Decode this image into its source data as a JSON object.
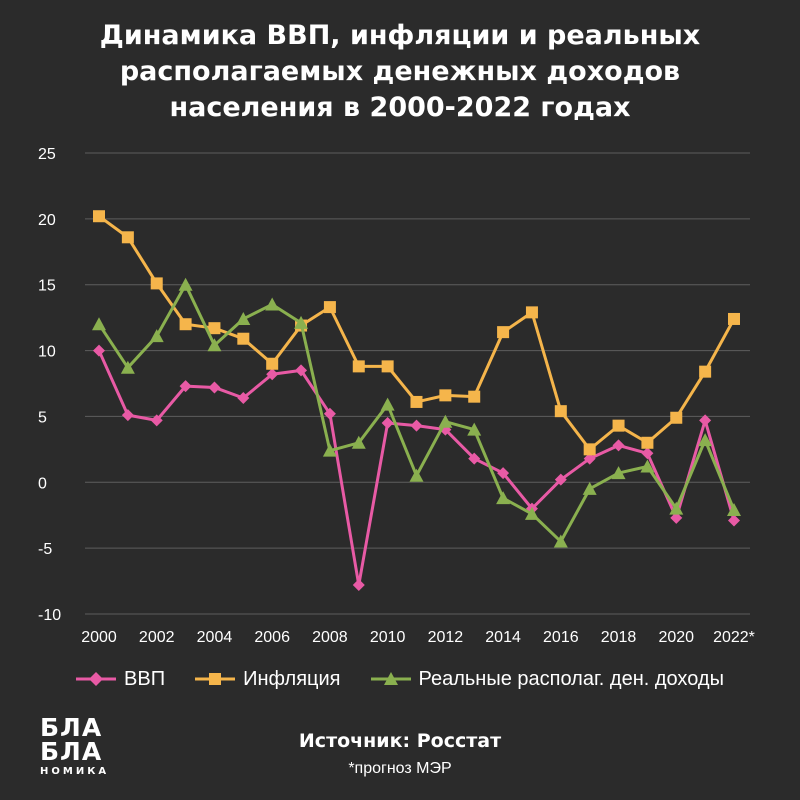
{
  "title": "Динамика ВВП, инфляции и реальных\nрасполагаемых денежных доходов\nнаселения в 2000-2022 годах",
  "source": "Источник: Росстат",
  "footnote": "*прогноз МЭР",
  "logo": {
    "line1": "БЛА",
    "line2": "БЛА",
    "sub": "НОМИКА"
  },
  "chart_data": {
    "type": "line",
    "x": [
      "2000",
      "2001",
      "2002",
      "2003",
      "2004",
      "2005",
      "2006",
      "2007",
      "2008",
      "2009",
      "2010",
      "2011",
      "2012",
      "2013",
      "2014",
      "2015",
      "2016",
      "2017",
      "2018",
      "2019",
      "2020",
      "2021",
      "2022*"
    ],
    "xtick_labels": [
      "2000",
      "2002",
      "2004",
      "2006",
      "2008",
      "2010",
      "2012",
      "2014",
      "2016",
      "2018",
      "2020",
      "2022*"
    ],
    "ylim": [
      -10,
      25
    ],
    "yticks": [
      "-10",
      "-5",
      "0",
      "5",
      "10",
      "15",
      "20",
      "25"
    ],
    "grid": true,
    "legend_position": "bottom",
    "series": [
      {
        "name": "ВВП",
        "color": "#e85aa5",
        "marker": "diamond",
        "values": [
          10.0,
          5.1,
          4.7,
          7.3,
          7.2,
          6.4,
          8.2,
          8.5,
          5.2,
          -7.8,
          4.5,
          4.3,
          4.0,
          1.8,
          0.7,
          -2.0,
          0.2,
          1.8,
          2.8,
          2.2,
          -2.7,
          4.7,
          -2.9
        ]
      },
      {
        "name": "Инфляция",
        "color": "#f5b54b",
        "marker": "square",
        "values": [
          20.2,
          18.6,
          15.1,
          12.0,
          11.7,
          10.9,
          9.0,
          11.9,
          13.3,
          8.8,
          8.8,
          6.1,
          6.6,
          6.5,
          11.4,
          12.9,
          5.4,
          2.5,
          4.3,
          3.0,
          4.9,
          8.4,
          12.4
        ]
      },
      {
        "name": "Реальные располаг. ден. доходы",
        "color": "#8ab04f",
        "marker": "triangle",
        "values": [
          12.0,
          8.7,
          11.1,
          15.0,
          10.4,
          12.4,
          13.5,
          12.1,
          2.4,
          3.0,
          5.9,
          0.5,
          4.6,
          4.0,
          -1.2,
          -2.4,
          -4.5,
          -0.5,
          0.7,
          1.2,
          -2.0,
          3.2,
          -2.1
        ]
      }
    ]
  }
}
